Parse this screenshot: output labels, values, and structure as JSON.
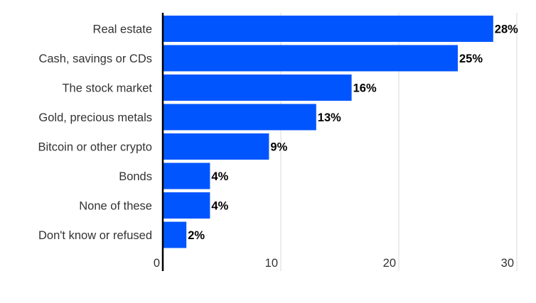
{
  "chart_data": {
    "type": "bar",
    "orientation": "horizontal",
    "categories": [
      "Real estate",
      "Cash, savings or CDs",
      "The stock market",
      "Gold, precious metals",
      "Bitcoin or other crypto",
      "Bonds",
      "None of these",
      "Don't know or refused"
    ],
    "values": [
      28,
      25,
      16,
      13,
      9,
      4,
      4,
      2
    ],
    "data_labels": [
      "28%",
      "25%",
      "16%",
      "13%",
      "9%",
      "4%",
      "4%",
      "2%"
    ],
    "title": "",
    "xlabel": "",
    "ylabel": "",
    "xlim": [
      0,
      30
    ],
    "x_ticks": [
      0,
      10,
      20,
      30
    ],
    "x_tick_labels": [
      "0",
      "10",
      "20",
      "30"
    ],
    "grid": true,
    "legend": "none",
    "colors": {
      "bar": "#0055ff",
      "grid": "#d9d9d9",
      "axis": "#000000"
    }
  }
}
